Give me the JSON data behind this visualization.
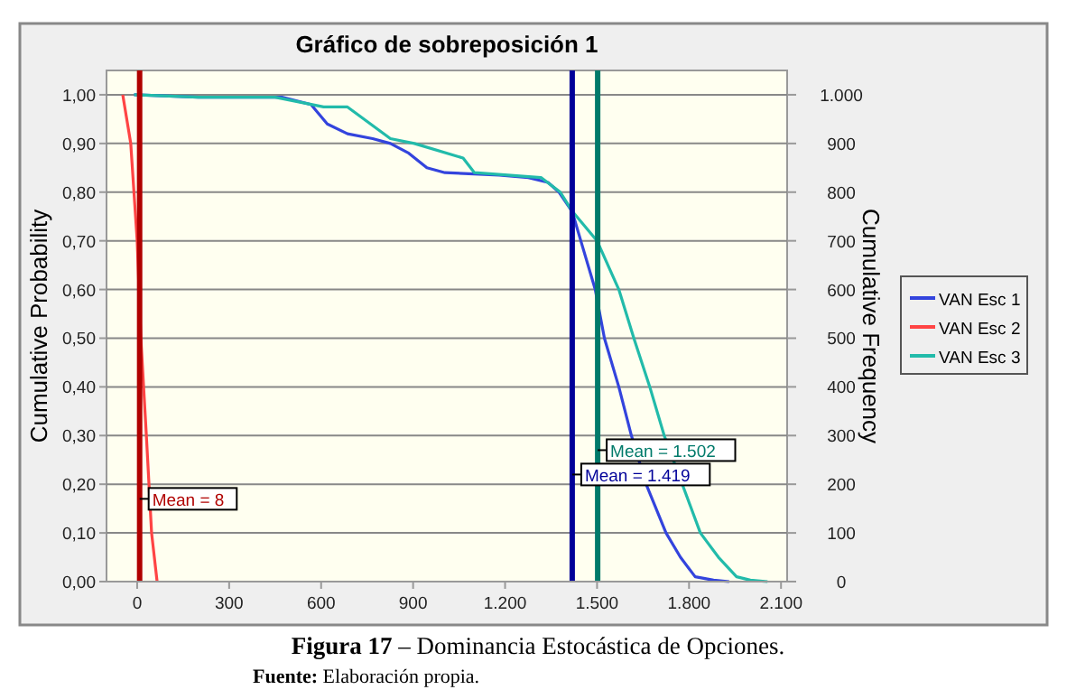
{
  "chart_data": {
    "type": "line",
    "title": "Gráfico de sobreposición 1",
    "xlabel": null,
    "ylabel": "Cumulative Probability",
    "y2label": "Cumulative Frequency",
    "series": [
      {
        "name": "VAN Esc 1",
        "color": "#3344dd",
        "x": [
          -10,
          200,
          472,
          567,
          620,
          686,
          768,
          826,
          886,
          945,
          1004,
          1181,
          1276,
          1340,
          1376,
          1419,
          1447,
          1494,
          1524,
          1571,
          1612,
          1660,
          1725,
          1772,
          1820,
          1880,
          1931
        ],
        "values": [
          1,
          0.995,
          0.995,
          0.98,
          0.94,
          0.92,
          0.91,
          0.9,
          0.88,
          0.85,
          0.84,
          0.835,
          0.83,
          0.82,
          0.8,
          0.76,
          0.7,
          0.6,
          0.5,
          0.4,
          0.3,
          0.2,
          0.1,
          0.05,
          0.01,
          0.003,
          0
        ]
      },
      {
        "name": "VAN Esc 2",
        "color": "#ff4444",
        "x": [
          -47,
          -21,
          0,
          12,
          30,
          47,
          65
        ],
        "values": [
          1,
          0.9,
          0.7,
          0.5,
          0.3,
          0.1,
          0
        ]
      },
      {
        "name": "VAN Esc 3",
        "color": "#22bbaa",
        "x": [
          -10,
          200,
          450,
          608,
          686,
          826,
          904,
          1063,
          1100,
          1317,
          1380,
          1420,
          1500,
          1571,
          1620,
          1672,
          1719,
          1778,
          1837,
          1896,
          1955,
          2000,
          2056
        ],
        "values": [
          1,
          0.995,
          0.995,
          0.975,
          0.975,
          0.91,
          0.9,
          0.87,
          0.84,
          0.83,
          0.8,
          0.76,
          0.7,
          0.6,
          0.5,
          0.4,
          0.3,
          0.2,
          0.1,
          0.05,
          0.01,
          0.003,
          0
        ]
      }
    ],
    "xlim": [
      -100,
      2120
    ],
    "xticks": [
      {
        "value": 0,
        "label": "0"
      },
      {
        "value": 300,
        "label": "300"
      },
      {
        "value": 600,
        "label": "600"
      },
      {
        "value": 900,
        "label": "900"
      },
      {
        "value": 1200,
        "label": "1.200"
      },
      {
        "value": 1500,
        "label": "1.500"
      },
      {
        "value": 1800,
        "label": "1.800"
      },
      {
        "value": 2100,
        "label": "2.100"
      }
    ],
    "ylim": [
      0,
      1.05
    ],
    "yticks": [
      {
        "value": 0,
        "label": "0,00"
      },
      {
        "value": 0.1,
        "label": "0,10"
      },
      {
        "value": 0.2,
        "label": "0,20"
      },
      {
        "value": 0.3,
        "label": "0,30"
      },
      {
        "value": 0.4,
        "label": "0,40"
      },
      {
        "value": 0.5,
        "label": "0,50"
      },
      {
        "value": 0.6,
        "label": "0,60"
      },
      {
        "value": 0.7,
        "label": "0,70"
      },
      {
        "value": 0.8,
        "label": "0,80"
      },
      {
        "value": 0.9,
        "label": "0,90"
      },
      {
        "value": 1,
        "label": "1,00"
      }
    ],
    "y2lim": [
      0,
      1050
    ],
    "y2ticks": [
      0,
      100,
      200,
      300,
      400,
      500,
      600,
      700,
      800,
      900,
      {
        "value": 1000,
        "label": "1.000"
      }
    ],
    "ref_lines": [
      {
        "axis": "x",
        "value": 8,
        "label": "Mean = 8",
        "color": "#b00000"
      },
      {
        "axis": "x",
        "value": 1419,
        "label": "Mean = 1.419",
        "color": "#000099"
      },
      {
        "axis": "x",
        "value": 1502,
        "label": "Mean = 1.502",
        "color": "#007a6a"
      }
    ],
    "grid": "y",
    "legend": "right",
    "marker": "none",
    "line_style": "solid",
    "annotations": [
      "Figura 17 – Dominancia Estocástica de Opciones.",
      "Fuente: Elaboración propia."
    ]
  }
}
